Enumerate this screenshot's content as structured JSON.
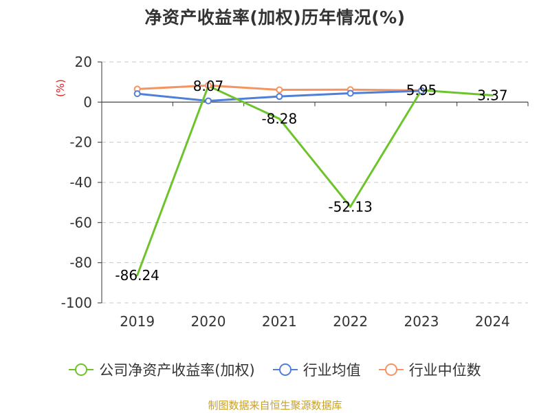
{
  "title": "净资产收益率(加权)历年情况(%)",
  "source": "制图数据来自恒生聚源数据库",
  "colors": {
    "company": "#6dc42a",
    "industry_avg": "#4f7fd8",
    "industry_median": "#f59462",
    "unit_label": "#e02020",
    "grid": "#c8c8c8",
    "axis": "#333333",
    "source": "#c8a02a"
  },
  "chart_data": {
    "type": "line",
    "title": "净资产收益率(加权)历年情况(%)",
    "xlabel": "",
    "ylabel": "(%)",
    "categories": [
      "2019",
      "2020",
      "2021",
      "2022",
      "2023",
      "2024"
    ],
    "ylim": [
      -100,
      20
    ],
    "yticks": [
      20,
      0,
      -20,
      -40,
      -60,
      -80,
      -100
    ],
    "grid": "horizontal dashed",
    "legend_position": "bottom",
    "series": [
      {
        "name": "公司净资产收益率(加权)",
        "color_key": "company",
        "values": [
          -86.24,
          8.07,
          -8.28,
          -52.13,
          5.95,
          3.37
        ],
        "labels": [
          "-86.24",
          "8.07",
          "-8.28",
          "-52.13",
          "5.95",
          "3.37"
        ],
        "markers": false
      },
      {
        "name": "行业均值",
        "color_key": "industry_avg",
        "values": [
          4.2,
          0.6,
          2.8,
          4.4,
          5.6,
          null
        ],
        "markers": true
      },
      {
        "name": "行业中位数",
        "color_key": "industry_median",
        "values": [
          6.5,
          8.3,
          6.1,
          6.2,
          5.8,
          null
        ],
        "markers": true
      }
    ]
  }
}
